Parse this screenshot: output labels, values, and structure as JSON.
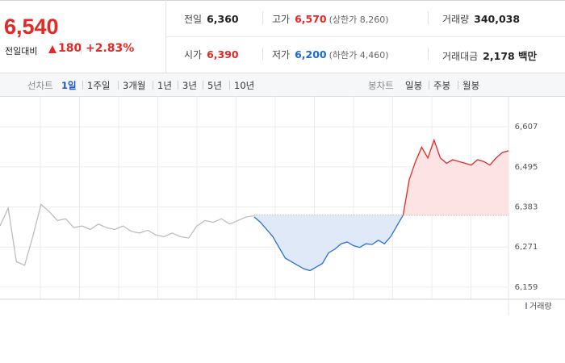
{
  "header": {
    "price": "6,540",
    "change_label": "전일대비",
    "change": "180",
    "change_rate": "+2.83%",
    "stats": [
      {
        "label": "전일",
        "value": "6,360",
        "color": "#222"
      },
      {
        "label": "고가",
        "value": "6,570",
        "note": "(상한가 8,260)",
        "color": "#e22926"
      },
      {
        "label": "거래량",
        "value": "340,038",
        "color": "#222"
      },
      {
        "label": "시가",
        "value": "6,390",
        "color": "#e22926"
      },
      {
        "label": "저가",
        "value": "6,200",
        "note": "(하한가 4,460)",
        "color": "#1a6bd6"
      },
      {
        "label": "거래대금",
        "value": "2,178 백만",
        "color": "#222"
      }
    ]
  },
  "tabs": {
    "line_label": "선차트",
    "line_periods": [
      "1일",
      "1주일",
      "3개월",
      "1년",
      "3년",
      "5년",
      "10년"
    ],
    "candle_label": "봉차트",
    "candle_periods": [
      "일봉",
      "주봉",
      "월봉"
    ]
  },
  "chart_data": {
    "type": "line",
    "ylim": [
      6125,
      6657
    ],
    "yticks": [
      {
        "value": 6159,
        "label": "6,159"
      },
      {
        "value": 6271,
        "label": "6,271"
      },
      {
        "value": 6383,
        "label": "6,383"
      },
      {
        "value": 6495,
        "label": "6,495"
      },
      {
        "value": 6607,
        "label": "6,607"
      }
    ],
    "baseline": 6360,
    "up_color": "#e22926",
    "down_color": "#2a6fd6",
    "up_fill": "#fde3e4",
    "down_fill": "#dfe9f8",
    "series": [
      {
        "color": "#bdbdbd",
        "values": [
          6330,
          6380,
          6230,
          6220,
          6300,
          6390,
          6370,
          6345,
          6350,
          6325,
          6330,
          6320,
          6335,
          6325,
          6320,
          6330,
          6315,
          6310,
          6318,
          6305,
          6300,
          6310,
          6300,
          6296,
          6330,
          6345,
          6340,
          6350,
          6335,
          6345,
          6355,
          6358
        ]
      },
      {
        "values": [
          6355,
          6340,
          6320,
          6300,
          6270,
          6240,
          6230,
          6220,
          6210,
          6205,
          6215,
          6225,
          6255,
          6265,
          6280,
          6285,
          6275,
          6270,
          6280,
          6278,
          6290,
          6280,
          6300,
          6330,
          6360,
          6460,
          6510,
          6550,
          6520,
          6570,
          6520,
          6505,
          6515,
          6510,
          6505,
          6500,
          6515,
          6510,
          6500,
          6520,
          6535,
          6540
        ]
      }
    ],
    "volume_label": "거래량"
  }
}
